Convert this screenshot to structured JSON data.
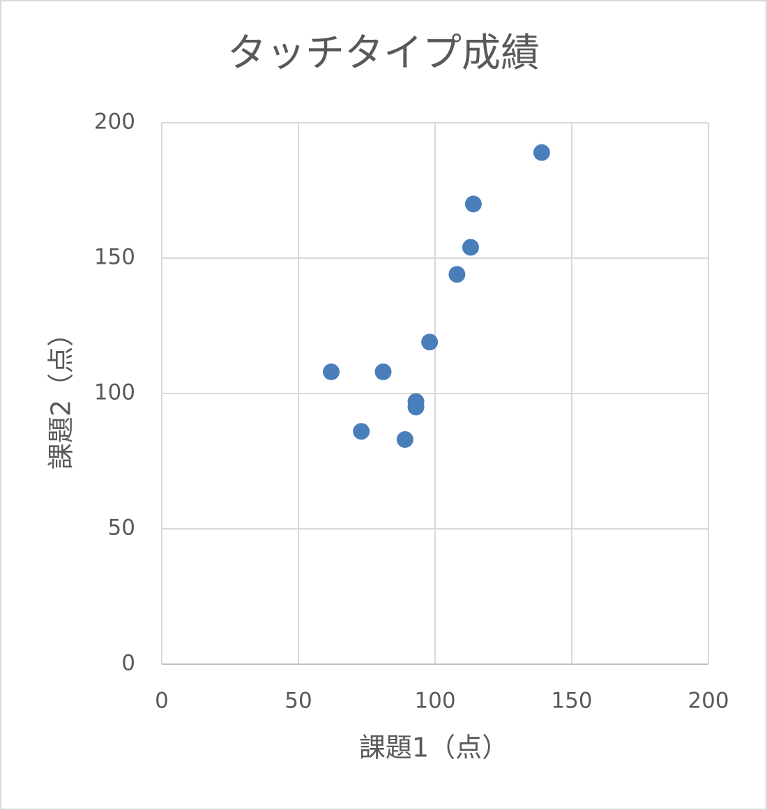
{
  "chart_data": {
    "type": "scatter",
    "title": "タッチタイプ成績",
    "x_label": "課題1（点）",
    "y_label": "課題2（点）",
    "series": [
      {
        "color": "#4a7ebb",
        "x": [
          62,
          81,
          73,
          89,
          93,
          93,
          98,
          108,
          113,
          114,
          139
        ],
        "values": [
          108,
          108,
          86,
          83,
          97,
          95,
          119,
          144,
          154,
          170,
          189
        ]
      }
    ],
    "xlim": [
      0,
      200
    ],
    "xticks": [
      0,
      50,
      100,
      150,
      200
    ],
    "ylim": [
      0,
      200
    ],
    "yticks": [
      0,
      50,
      100,
      150,
      200
    ],
    "grid": true
  }
}
